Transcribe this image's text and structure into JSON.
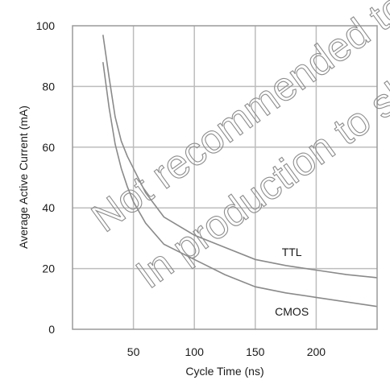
{
  "chart_data": {
    "type": "line",
    "xlabel": "Cycle Time (ns)",
    "ylabel": "Average Active Current (mA)",
    "xlim": [
      0,
      250
    ],
    "ylim": [
      0,
      100
    ],
    "xticks": [
      "50",
      "100",
      "150",
      "200"
    ],
    "yticks": [
      "0",
      "20",
      "40",
      "60",
      "80",
      "100"
    ],
    "grid": true,
    "series": [
      {
        "name": "TTL",
        "x": [
          25,
          30,
          35,
          40,
          45,
          50,
          60,
          75,
          100,
          125,
          150,
          175,
          200,
          225,
          250
        ],
        "y": [
          97,
          83,
          70,
          62,
          57,
          53,
          45,
          37,
          31,
          27,
          23,
          21,
          19.5,
          18,
          17
        ]
      },
      {
        "name": "CMOS",
        "x": [
          25,
          30,
          35,
          40,
          45,
          50,
          60,
          75,
          100,
          125,
          150,
          175,
          200,
          225,
          250
        ],
        "y": [
          88,
          73,
          61,
          53,
          47,
          42,
          35,
          28,
          23,
          18,
          14,
          12,
          10.5,
          9,
          7.5
        ]
      }
    ]
  },
  "watermark": {
    "line1": "Not recommended to ship",
    "line2": "In production to ship"
  }
}
